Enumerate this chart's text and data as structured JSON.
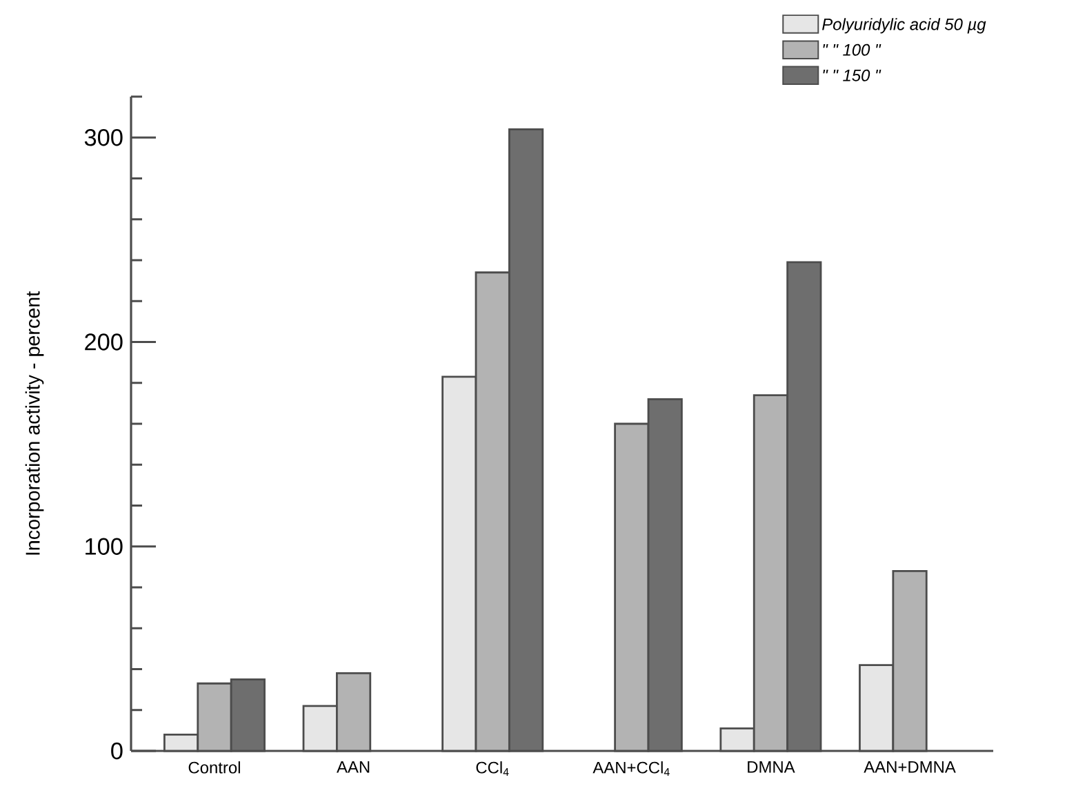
{
  "chart_data": {
    "type": "bar",
    "ylabel": "Incorporation  activity  -  percent",
    "categories": [
      "Control",
      "AAN",
      "CCl$_{4}$",
      "AAN+CCl$_{4}$",
      "DMNA",
      "AAN+DMNA"
    ],
    "series": [
      {
        "name": "Polyuridylic  acid  50 µg",
        "color": "#e6e6e6",
        "values": [
          8,
          22,
          183,
          null,
          11,
          42
        ]
      },
      {
        "name": "\"  \"  100  \"",
        "color": "#b3b3b3",
        "values": [
          33,
          38,
          234,
          160,
          174,
          88
        ]
      },
      {
        "name": "\"  \"  150  \"",
        "color": "#6e6e6e",
        "values": [
          35,
          null,
          304,
          172,
          239,
          null
        ]
      }
    ],
    "ylim": [
      0,
      320
    ],
    "yticks": [
      0,
      {
        "value": 20,
        "label": null
      },
      {
        "value": 40,
        "label": null
      },
      {
        "value": 60,
        "label": null
      },
      {
        "value": 80,
        "label": null
      },
      100,
      {
        "value": 120,
        "label": null
      },
      {
        "value": 140,
        "label": null
      },
      {
        "value": 160,
        "label": null
      },
      {
        "value": 180,
        "label": null
      },
      200,
      {
        "value": 220,
        "label": null
      },
      {
        "value": 240,
        "label": null
      },
      {
        "value": 260,
        "label": null
      },
      {
        "value": 280,
        "label": null
      },
      300,
      {
        "value": 320,
        "label": null
      }
    ],
    "grid": false,
    "legend": "top right"
  }
}
